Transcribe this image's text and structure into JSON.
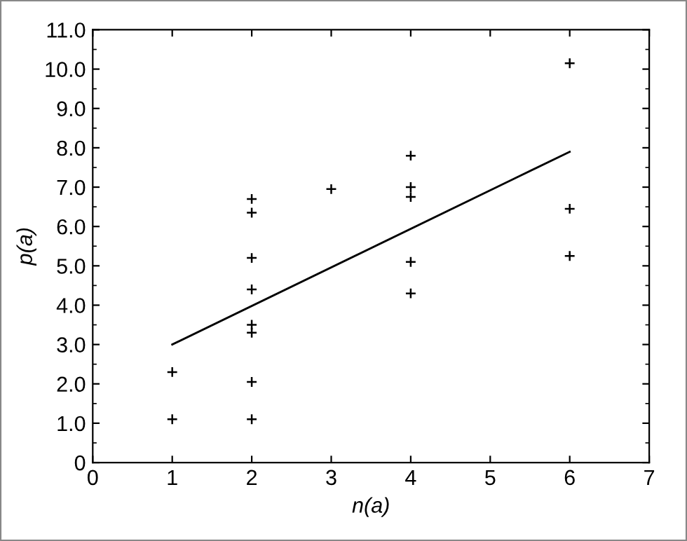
{
  "chart_data": {
    "type": "scatter",
    "xlabel": "n(a)",
    "ylabel": "p(a)",
    "xlim": [
      0,
      7
    ],
    "ylim": [
      0,
      11
    ],
    "xticks": [
      0,
      1,
      2,
      3,
      4,
      5,
      6,
      7
    ],
    "yticks": [
      0,
      {
        "value": 1,
        "label": "1.0"
      },
      {
        "value": 2,
        "label": "2.0"
      },
      {
        "value": 3,
        "label": "3.0"
      },
      {
        "value": 4,
        "label": "4.0"
      },
      {
        "value": 5,
        "label": "5.0"
      },
      {
        "value": 6,
        "label": "6.0"
      },
      {
        "value": 7,
        "label": "7.0"
      },
      {
        "value": 8,
        "label": "8.0"
      },
      {
        "value": 9,
        "label": "9.0"
      },
      {
        "value": 10,
        "label": "10.0"
      },
      {
        "value": 11,
        "label": "11.0"
      }
    ],
    "grid": false,
    "legend": false,
    "series": [
      {
        "marker": "cross",
        "color": "#000000",
        "x": [
          1,
          1,
          2,
          2,
          2,
          2,
          2,
          2,
          2,
          2,
          3,
          4,
          4,
          4,
          4,
          4,
          6,
          6,
          6
        ],
        "values": [
          2.3,
          1.1,
          6.7,
          6.35,
          5.2,
          4.4,
          3.5,
          3.3,
          2.05,
          1.1,
          6.95,
          7.8,
          7.0,
          6.75,
          5.1,
          4.3,
          10.15,
          6.45,
          5.25
        ]
      },
      {
        "type": "line",
        "color": "#000000",
        "x": [
          1,
          6
        ],
        "values": [
          3.0,
          7.9
        ]
      }
    ]
  }
}
